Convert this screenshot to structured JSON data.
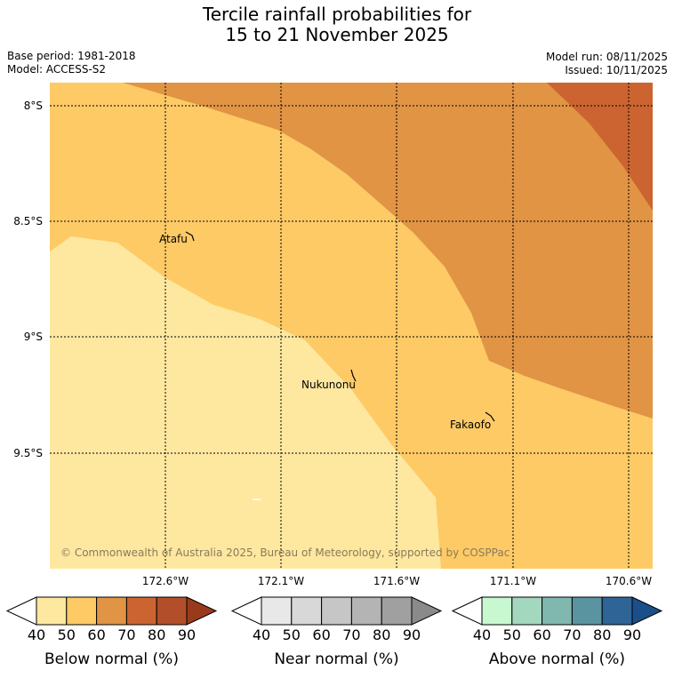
{
  "header": {
    "title_line1": "Tercile rainfall probabilities for",
    "title_line2": "15 to 21 November 2025",
    "base_period": "Base period: 1981-2018",
    "model": "Model: ACCESS-S2",
    "model_run": "Model run: 08/11/2025",
    "issued": "Issued: 10/11/2025"
  },
  "map": {
    "lat_labels": [
      "8°S",
      "8.5°S",
      "9°S",
      "9.5°S"
    ],
    "lon_labels": [
      "172.6°W",
      "172.1°W",
      "171.6°W",
      "171.1°W",
      "170.6°W"
    ],
    "places": [
      "Atafu",
      "Nukunonu",
      "Fakaofo"
    ],
    "copyright": "© Commonwealth of Australia 2025, Bureau of Meteorology, supported by COSPPac",
    "category_shown": "below normal",
    "levels_pct": [
      40,
      50,
      60,
      70
    ],
    "colors": {
      "40": "#fee8a0",
      "50": "#fdca66",
      "60": "#e09444",
      "70": "#cb6430"
    }
  },
  "colorbars": [
    {
      "label": "Below normal (%)",
      "ticks": [
        "40",
        "50",
        "60",
        "70",
        "80",
        "90"
      ],
      "colors": [
        "#ffffff",
        "#fee8a0",
        "#fdca66",
        "#e09444",
        "#cb6430",
        "#b24f2a",
        "#9a3a1d"
      ]
    },
    {
      "label": "Near normal (%)",
      "ticks": [
        "40",
        "50",
        "60",
        "70",
        "80",
        "90"
      ],
      "colors": [
        "#ffffff",
        "#e8e8e8",
        "#d8d8d8",
        "#c6c6c6",
        "#b4b4b4",
        "#a0a0a0",
        "#8a8a8a"
      ]
    },
    {
      "label": "Above normal (%)",
      "ticks": [
        "40",
        "50",
        "60",
        "70",
        "80",
        "90"
      ],
      "colors": [
        "#ffffff",
        "#c8f8d0",
        "#a4d8be",
        "#80b8b0",
        "#5a94a0",
        "#2e6496",
        "#1b4f8a"
      ]
    }
  ]
}
